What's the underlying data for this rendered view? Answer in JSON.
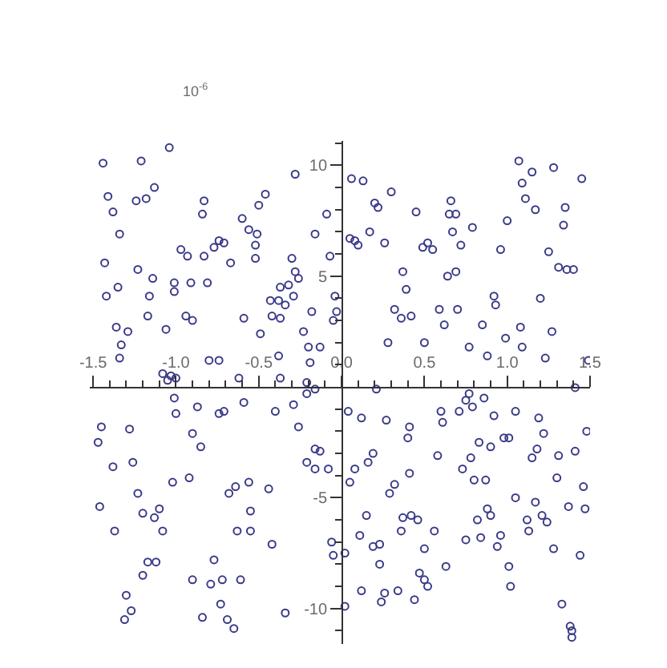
{
  "chart_data": {
    "type": "scatter",
    "ylabel": "10$^{-6}$",
    "color": "#3a3a8a",
    "marker": "circle",
    "xlim": [
      -1.52,
      1.5
    ],
    "ylim": [
      -11.6,
      11.1
    ],
    "xticks": [
      {
        "value": -1.5,
        "label": "-1.5"
      },
      {
        "value": -1.4,
        "label": null
      },
      {
        "value": -1.3,
        "label": null
      },
      {
        "value": -1.2,
        "label": null
      },
      {
        "value": -1.1,
        "label": null
      },
      {
        "value": -1.0,
        "label": "-1.0"
      },
      {
        "value": -0.9,
        "label": null
      },
      {
        "value": -0.8,
        "label": null
      },
      {
        "value": -0.7,
        "label": null
      },
      {
        "value": -0.6,
        "label": null
      },
      {
        "value": -0.5,
        "label": "-0.5"
      },
      {
        "value": -0.4,
        "label": null
      },
      {
        "value": -0.3,
        "label": null
      },
      {
        "value": -0.2,
        "label": null
      },
      {
        "value": -0.1,
        "label": null
      },
      {
        "value": 0.0,
        "label": "0.0"
      },
      {
        "value": 0.1,
        "label": null
      },
      {
        "value": 0.2,
        "label": null
      },
      {
        "value": 0.3,
        "label": null
      },
      {
        "value": 0.4,
        "label": null
      },
      {
        "value": 0.5,
        "label": "0.5"
      },
      {
        "value": 0.6,
        "label": null
      },
      {
        "value": 0.7,
        "label": null
      },
      {
        "value": 0.8,
        "label": null
      },
      {
        "value": 0.9,
        "label": null
      },
      {
        "value": 1.0,
        "label": "1.0"
      },
      {
        "value": 1.1,
        "label": null
      },
      {
        "value": 1.2,
        "label": null
      },
      {
        "value": 1.3,
        "label": null
      },
      {
        "value": 1.4,
        "label": null
      },
      {
        "value": 1.5,
        "label": "1.5"
      }
    ],
    "yticks": [
      {
        "value": -11,
        "label": null
      },
      -10,
      {
        "value": -9,
        "label": null
      },
      {
        "value": -8,
        "label": null
      },
      {
        "value": -7,
        "label": null
      },
      {
        "value": -6,
        "label": null
      },
      -5,
      {
        "value": -4,
        "label": null
      },
      {
        "value": -3,
        "label": null
      },
      {
        "value": -2,
        "label": null
      },
      {
        "value": -1,
        "label": null
      },
      {
        "value": 1,
        "label": null
      },
      {
        "value": 2,
        "label": null
      },
      {
        "value": 3,
        "label": null
      },
      {
        "value": 4,
        "label": null
      },
      5,
      {
        "value": 6,
        "label": null
      },
      {
        "value": 7,
        "label": null
      },
      {
        "value": 8,
        "label": null
      },
      {
        "value": 9,
        "label": null
      },
      10,
      {
        "value": 11,
        "label": null
      }
    ],
    "x": [
      -1.04,
      -1.44,
      -1.21,
      -0.28,
      -1.41,
      -1.13,
      -1.24,
      -1.18,
      -0.83,
      -0.46,
      -0.5,
      -1.38,
      -0.84,
      -0.09,
      -0.6,
      -1.34,
      -0.56,
      -0.51,
      -0.16,
      -0.74,
      -0.71,
      -0.77,
      -0.97,
      -0.52,
      -0.93,
      -0.83,
      -0.67,
      -0.52,
      -0.3,
      -0.07,
      -1.43,
      -1.23,
      -0.28,
      -0.26,
      -1.14,
      -1.01,
      -0.91,
      -0.81,
      -0.37,
      -0.32,
      -1.42,
      -1.35,
      -1.16,
      -1.01,
      -0.29,
      -0.43,
      -0.38,
      -0.34,
      -0.18,
      -1.17,
      -0.94,
      -0.9,
      -0.59,
      -0.42,
      -0.37,
      -1.06,
      -1.36,
      -1.29,
      -0.23,
      -0.49,
      -1.33,
      -0.2,
      -0.13,
      -0.8,
      -0.74,
      -0.38,
      -0.19,
      -1.34,
      -1.08,
      -1.03,
      -1.0,
      -1.05,
      -0.62,
      -0.37,
      -0.21,
      -0.04,
      -0.03,
      -0.05,
      -0.16,
      -0.21,
      -1.01,
      -1.0,
      -0.87,
      -0.74,
      -0.71,
      -0.59,
      -0.4,
      -0.29,
      -1.45,
      -1.28,
      -1.47,
      -0.9,
      -0.85,
      -0.26,
      -0.16,
      -0.13,
      -0.21,
      -0.16,
      -0.08,
      -1.38,
      -1.26,
      -1.02,
      -0.92,
      -1.23,
      -1.46,
      -1.2,
      -1.13,
      -1.1,
      -0.68,
      -0.64,
      -0.56,
      -0.44,
      -0.55,
      -1.37,
      -1.08,
      -0.63,
      -0.55,
      -0.42,
      -0.06,
      -0.05,
      -1.17,
      -1.12,
      -1.2,
      -0.77,
      -0.9,
      -0.79,
      -0.72,
      -0.61,
      -1.3,
      -1.27,
      -1.31,
      -0.73,
      -0.84,
      -0.69,
      -0.65,
      -0.34,
      0.06,
      0.13,
      1.07,
      1.15,
      1.28,
      1.45,
      0.3,
      0.2,
      0.22,
      0.66,
      1.09,
      1.11,
      1.17,
      1.35,
      0.45,
      0.65,
      0.69,
      1.0,
      0.79,
      1.34,
      0.67,
      0.17,
      0.05,
      0.08,
      0.1,
      0.26,
      0.49,
      0.52,
      0.55,
      0.72,
      0.96,
      1.25,
      0.37,
      0.64,
      0.69,
      1.31,
      1.36,
      1.4,
      0.39,
      0.92,
      0.93,
      1.2,
      0.32,
      0.36,
      0.42,
      0.59,
      0.7,
      0.62,
      0.85,
      1.08,
      1.27,
      0.28,
      0.5,
      0.99,
      0.77,
      0.88,
      1.09,
      1.23,
      1.49,
      0.21,
      1.41,
      0.04,
      0.12,
      0.27,
      0.6,
      0.61,
      0.71,
      0.75,
      0.77,
      0.79,
      0.86,
      0.92,
      1.05,
      1.19,
      0.41,
      0.4,
      1.22,
      1.48,
      0.83,
      0.9,
      0.98,
      1.01,
      1.18,
      1.15,
      1.31,
      1.41,
      0.58,
      0.78,
      0.19,
      0.16,
      0.08,
      0.73,
      0.05,
      0.41,
      0.8,
      0.87,
      0.32,
      0.29,
      1.3,
      1.46,
      1.05,
      1.17,
      1.37,
      1.47,
      0.88,
      0.9,
      0.82,
      1.21,
      1.24,
      1.12,
      1.13,
      0.37,
      0.42,
      0.46,
      0.15,
      0.36,
      0.56,
      0.75,
      0.84,
      0.96,
      0.94,
      0.11,
      0.02,
      0.19,
      0.23,
      0.5,
      0.23,
      0.63,
      1.28,
      1.44,
      1.01,
      0.47,
      0.5,
      0.52,
      1.02,
      0.12,
      0.26,
      0.34,
      0.24,
      0.44,
      0.02,
      1.33,
      1.38,
      1.39,
      1.39
    ],
    "values": [
      10.8,
      10.1,
      10.2,
      9.6,
      8.6,
      9.0,
      8.4,
      8.5,
      8.4,
      8.7,
      8.2,
      7.9,
      7.8,
      7.8,
      7.6,
      6.9,
      7.1,
      6.9,
      6.9,
      6.6,
      6.5,
      6.3,
      6.2,
      6.4,
      5.9,
      5.9,
      5.6,
      5.8,
      5.8,
      5.9,
      5.6,
      5.3,
      5.2,
      4.9,
      4.9,
      4.7,
      4.7,
      4.7,
      4.5,
      4.6,
      4.1,
      4.5,
      4.1,
      4.3,
      4.1,
      3.9,
      3.9,
      3.7,
      3.4,
      3.2,
      3.2,
      3.0,
      3.1,
      3.2,
      3.1,
      2.6,
      2.7,
      2.5,
      2.5,
      2.4,
      1.9,
      1.8,
      1.8,
      1.2,
      1.2,
      1.4,
      1.1,
      1.3,
      0.6,
      0.5,
      0.4,
      0.3,
      0.4,
      0.4,
      0.2,
      4.1,
      3.4,
      3.0,
      -0.1,
      -0.3,
      -0.5,
      -1.2,
      -0.9,
      -1.2,
      -1.1,
      -0.7,
      -1.1,
      -0.8,
      -1.8,
      -1.9,
      -2.5,
      -2.1,
      -2.7,
      -1.8,
      -2.8,
      -2.9,
      -3.4,
      -3.7,
      -3.7,
      -3.6,
      -3.4,
      -4.3,
      -4.1,
      -4.8,
      -5.4,
      -5.7,
      -5.9,
      -5.5,
      -4.8,
      -4.5,
      -4.3,
      -4.6,
      -5.6,
      -6.5,
      -6.5,
      -6.5,
      -6.5,
      -7.1,
      -7.0,
      -7.6,
      -7.9,
      -7.9,
      -8.5,
      -7.8,
      -8.7,
      -8.9,
      -8.7,
      -8.7,
      -9.4,
      -10.1,
      -10.5,
      -9.8,
      -10.4,
      -10.5,
      -10.9,
      -10.2,
      9.4,
      9.3,
      10.2,
      9.7,
      9.9,
      9.4,
      8.8,
      8.3,
      8.1,
      8.4,
      9.2,
      8.5,
      8.0,
      8.1,
      7.9,
      7.8,
      7.8,
      7.5,
      7.2,
      7.3,
      7.0,
      7.0,
      6.7,
      6.6,
      6.4,
      6.5,
      6.3,
      6.5,
      6.2,
      6.4,
      6.2,
      6.1,
      5.2,
      5.0,
      5.2,
      5.4,
      5.3,
      5.3,
      4.4,
      4.1,
      3.7,
      4.0,
      3.5,
      3.1,
      3.2,
      3.5,
      3.5,
      2.8,
      2.8,
      2.7,
      2.5,
      2.0,
      2.0,
      2.2,
      1.8,
      1.4,
      1.8,
      1.3,
      1.2,
      -0.1,
      -0.03,
      -1.1,
      -1.4,
      -1.5,
      -1.1,
      -1.6,
      -1.1,
      -0.6,
      -0.3,
      -0.9,
      -0.5,
      -1.3,
      -1.1,
      -1.4,
      -1.8,
      -2.3,
      -2.1,
      -2.0,
      -2.5,
      -2.7,
      -2.3,
      -2.3,
      -2.8,
      -3.2,
      -3.1,
      -2.9,
      -3.1,
      -3.2,
      -3.0,
      -3.4,
      -3.7,
      -3.7,
      -4.3,
      -3.9,
      -4.2,
      -4.2,
      -4.4,
      -4.8,
      -4.1,
      -4.5,
      -5.0,
      -5.2,
      -5.4,
      -5.5,
      -5.5,
      -5.8,
      -6.0,
      -5.8,
      -6.1,
      -6.0,
      -6.5,
      -5.9,
      -5.8,
      -6.0,
      -5.8,
      -6.5,
      -6.5,
      -6.9,
      -6.8,
      -6.7,
      -7.2,
      -6.7,
      -7.5,
      -7.2,
      -7.1,
      -7.3,
      -8.0,
      -8.1,
      -7.3,
      -7.6,
      -8.1,
      -8.4,
      -8.7,
      -9.0,
      -9.0,
      -9.2,
      -9.3,
      -9.2,
      -9.7,
      -9.6,
      -9.9,
      -9.8,
      -10.8,
      -11.0,
      -11.3
    ]
  }
}
